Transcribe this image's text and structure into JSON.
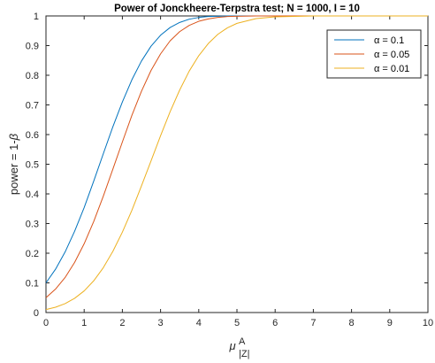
{
  "chart_data": {
    "type": "line",
    "title": "Power of Jonckheere-Terpstra test; N = 1000, I = 10",
    "xlabel": "μ",
    "xlabel_sup": "A",
    "xlabel_sub": "|Z|",
    "ylabel_text": "power = 1-",
    "ylabel_symbol": "β",
    "xlim": [
      0,
      10
    ],
    "ylim": [
      0,
      1
    ],
    "x_ticks": [
      0,
      1,
      2,
      3,
      4,
      5,
      6,
      7,
      8,
      9,
      10
    ],
    "y_ticks": [
      0,
      0.1,
      0.2,
      0.3,
      0.4,
      0.5,
      0.6,
      0.7,
      0.8,
      0.9,
      1
    ],
    "grid": false,
    "legend_position": "top-right",
    "x": [
      0,
      0.25,
      0.5,
      0.75,
      1,
      1.25,
      1.5,
      1.75,
      2,
      2.25,
      2.5,
      2.75,
      3,
      3.25,
      3.5,
      3.75,
      4,
      4.25,
      4.5,
      4.75,
      5,
      5.5,
      6,
      7,
      8,
      9,
      10
    ],
    "series": [
      {
        "name": "α = 0.1",
        "color": "#0072BD",
        "values": [
          0.1,
          0.146,
          0.204,
          0.274,
          0.354,
          0.443,
          0.535,
          0.626,
          0.71,
          0.785,
          0.848,
          0.898,
          0.935,
          0.961,
          0.978,
          0.989,
          0.995,
          0.998,
          0.999,
          1,
          1,
          1,
          1,
          1,
          1,
          1,
          1
        ]
      },
      {
        "name": "α = 0.05",
        "color": "#D95319",
        "values": [
          0.05,
          0.079,
          0.118,
          0.169,
          0.232,
          0.307,
          0.392,
          0.483,
          0.575,
          0.665,
          0.746,
          0.816,
          0.872,
          0.916,
          0.947,
          0.968,
          0.982,
          0.99,
          0.995,
          0.998,
          0.999,
          1,
          1,
          1,
          1,
          1,
          1
        ]
      },
      {
        "name": "α = 0.01",
        "color": "#EDB120",
        "values": [
          0.01,
          0.018,
          0.03,
          0.048,
          0.073,
          0.107,
          0.151,
          0.206,
          0.271,
          0.345,
          0.427,
          0.511,
          0.596,
          0.677,
          0.75,
          0.814,
          0.866,
          0.907,
          0.938,
          0.96,
          0.975,
          0.991,
          0.997,
          1,
          1,
          1,
          1
        ]
      }
    ]
  }
}
